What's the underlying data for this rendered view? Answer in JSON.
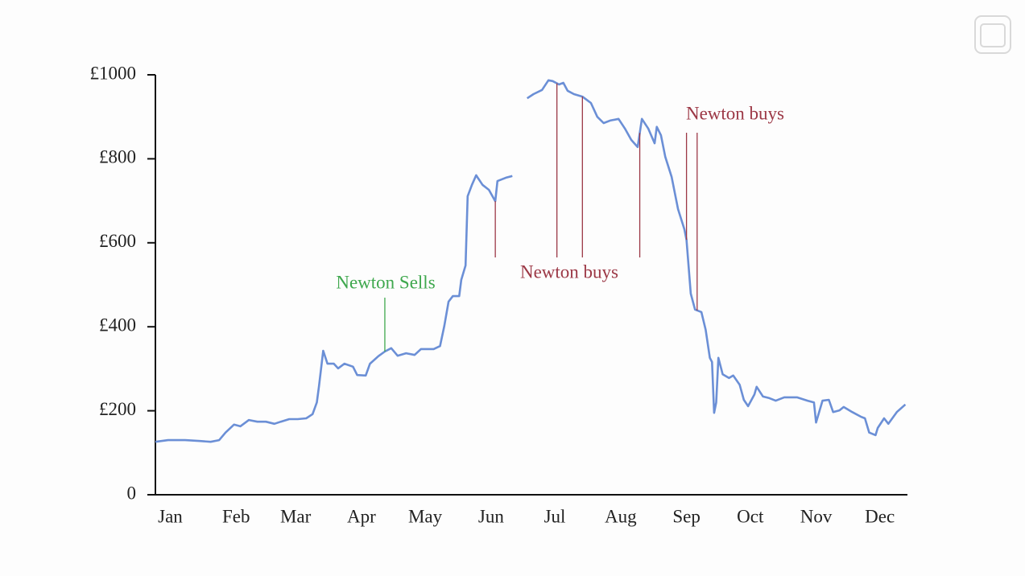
{
  "chart_data": {
    "type": "line",
    "color": "#6b8fd6",
    "x": [
      -6,
      0,
      8,
      15,
      20,
      24,
      27,
      31,
      34,
      38,
      42,
      46,
      50,
      53,
      57,
      61,
      65,
      68,
      70,
      71,
      73,
      75,
      78,
      80,
      83,
      87,
      89,
      93,
      95,
      99,
      102,
      105,
      108,
      112,
      116,
      119,
      125,
      128,
      130,
      132,
      134,
      137,
      138,
      140,
      141,
      143,
      145,
      146,
      148,
      151,
      154,
      155,
      159,
      162,
      165,
      169,
      172,
      176,
      179,
      181,
      184,
      186,
      188,
      191,
      195,
      199,
      202,
      205,
      208,
      212,
      215,
      218,
      221,
      223,
      226,
      229,
      230,
      232,
      234,
      237,
      240,
      243,
      244,
      246,
      248,
      251,
      253,
      255,
      256,
      257,
      258,
      259,
      261,
      264,
      266,
      269,
      271,
      273,
      276,
      277,
      280,
      283,
      286,
      290,
      296,
      301,
      304,
      305,
      308,
      311,
      313,
      316,
      318,
      322,
      326,
      328,
      330,
      333,
      334,
      337,
      339,
      343,
      347
    ],
    "values": [
      126,
      130,
      130,
      128,
      126,
      130,
      148,
      167,
      163,
      178,
      174,
      174,
      169,
      174,
      180,
      180,
      182,
      192,
      220,
      259,
      343,
      312,
      312,
      301,
      312,
      305,
      285,
      284,
      312,
      330,
      341,
      349,
      331,
      337,
      333,
      347,
      347,
      354,
      402,
      460,
      473,
      473,
      512,
      546,
      711,
      738,
      761,
      753,
      738,
      726,
      699,
      747,
      755,
      759,
      null,
      944,
      954,
      964,
      987,
      985,
      977,
      981,
      962,
      954,
      948,
      933,
      900,
      885,
      891,
      895,
      872,
      845,
      828,
      895,
      872,
      837,
      876,
      856,
      805,
      757,
      680,
      632,
      607,
      479,
      441,
      435,
      393,
      326,
      316,
      195,
      220,
      326,
      287,
      278,
      284,
      262,
      226,
      211,
      239,
      257,
      234,
      230,
      224,
      232,
      232,
      224,
      220,
      172,
      224,
      226,
      197,
      201,
      209,
      197,
      186,
      182,
      148,
      142,
      159,
      182,
      169,
      197,
      215
    ],
    "xlim": [
      -6,
      348
    ],
    "xticks": [
      {
        "value": 1,
        "label": "Jan"
      },
      {
        "value": 32,
        "label": "Feb"
      },
      {
        "value": 60,
        "label": "Mar"
      },
      {
        "value": 91,
        "label": "Apr"
      },
      {
        "value": 121,
        "label": "May"
      },
      {
        "value": 152,
        "label": "Jun"
      },
      {
        "value": 182,
        "label": "Jul"
      },
      {
        "value": 213,
        "label": "Aug"
      },
      {
        "value": 244,
        "label": "Sep"
      },
      {
        "value": 274,
        "label": "Oct"
      },
      {
        "value": 305,
        "label": "Nov"
      },
      {
        "value": 335,
        "label": "Dec"
      }
    ],
    "ylim": [
      0,
      1000
    ],
    "yticks": [
      0,
      {
        "value": 200,
        "label": "£200"
      },
      {
        "value": 400,
        "label": "£400"
      },
      {
        "value": 600,
        "label": "£600"
      },
      {
        "value": 800,
        "label": "£800"
      },
      {
        "value": 1000,
        "label": "£1000"
      }
    ],
    "annotations": [
      {
        "text": "Newton Sells",
        "color": "#3fa84e",
        "x": [
          102
        ]
      },
      {
        "text": "Newton buys",
        "color": "#9c3846",
        "x": [
          154,
          183,
          195,
          222
        ]
      },
      {
        "text": "Newton buys",
        "color": "#9c3846",
        "x": [
          244,
          249
        ]
      }
    ]
  }
}
